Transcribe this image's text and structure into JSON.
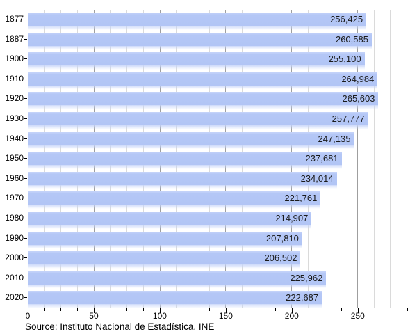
{
  "chart_data": {
    "type": "bar",
    "orientation": "horizontal",
    "title": "",
    "categories": [
      "1877",
      "1887",
      "1900",
      "1910",
      "1920",
      "1930",
      "1940",
      "1950",
      "1960",
      "1970",
      "1980",
      "1990",
      "2000",
      "2010",
      "2020"
    ],
    "values": [
      256425,
      260585,
      255100,
      264984,
      265603,
      257777,
      247135,
      237681,
      234014,
      221761,
      214907,
      207810,
      206502,
      225962,
      222687
    ],
    "value_labels": [
      "256,425",
      "260,585",
      "255,100",
      "264,984",
      "265,603",
      "257,777",
      "247,135",
      "237,681",
      "234,014",
      "221,761",
      "214,907",
      "207,810",
      "206,502",
      "225,962",
      "222,687"
    ],
    "xlabel": "",
    "ylabel": "",
    "x_axis": {
      "tick_labels": [
        "0",
        "50",
        "100",
        "150",
        "200",
        "250"
      ],
      "tick_values": [
        0,
        50,
        100,
        150,
        200,
        250
      ],
      "minor_step": 12.5,
      "range": [
        0,
        287.5
      ],
      "units": "thousands"
    },
    "grid": "vertical, minor every 12.5 (light), major every 50 (dark)",
    "legend": "none",
    "source": "Source: Instituto Nacional de Estadística, INE",
    "colors": {
      "bar": "#b4c7f6",
      "bar_highlight": "#c6d4fa",
      "grid_minor": "#dadada",
      "grid_major": "#9f9f9f",
      "axis": "#000000",
      "value_text": "#1a1a1a"
    }
  }
}
